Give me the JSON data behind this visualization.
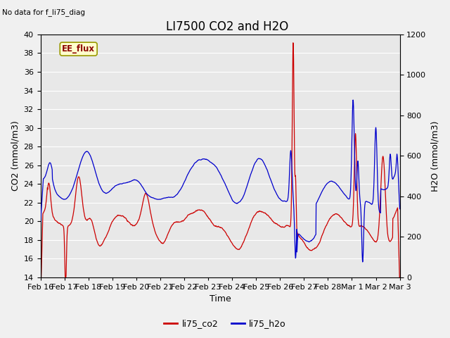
{
  "title": "LI7500 CO2 and H2O",
  "top_left_text": "No data for f_li75_diag",
  "xlabel": "Time",
  "ylabel_left": "CO2 (mmol/m3)",
  "ylabel_right": "H2O (mmol/m3)",
  "ylim_left": [
    14,
    40
  ],
  "ylim_right": [
    0,
    1200
  ],
  "yticks_left": [
    14,
    16,
    18,
    20,
    22,
    24,
    26,
    28,
    30,
    32,
    34,
    36,
    38,
    40
  ],
  "yticks_right": [
    0,
    200,
    400,
    600,
    800,
    1000,
    1200
  ],
  "xtick_labels": [
    "Feb 16",
    "Feb 17",
    "Feb 18",
    "Feb 19",
    "Feb 20",
    "Feb 21",
    "Feb 22",
    "Feb 23",
    "Feb 24",
    "Feb 25",
    "Feb 26",
    "Feb 27",
    "Feb 28",
    "Mar 1",
    "Mar 2",
    "Mar 3"
  ],
  "color_co2": "#cc0000",
  "color_h2o": "#0000cc",
  "legend_label_co2": "li75_co2",
  "legend_label_h2o": "li75_h2o",
  "ee_flux_label": "EE_flux",
  "ee_flux_bg": "#ffffcc",
  "ee_flux_border": "#999900",
  "plot_bg": "#e8e8e8",
  "fig_bg": "#f0f0f0",
  "grid_color": "#ffffff",
  "title_fontsize": 12,
  "axis_label_fontsize": 9,
  "tick_fontsize": 8
}
